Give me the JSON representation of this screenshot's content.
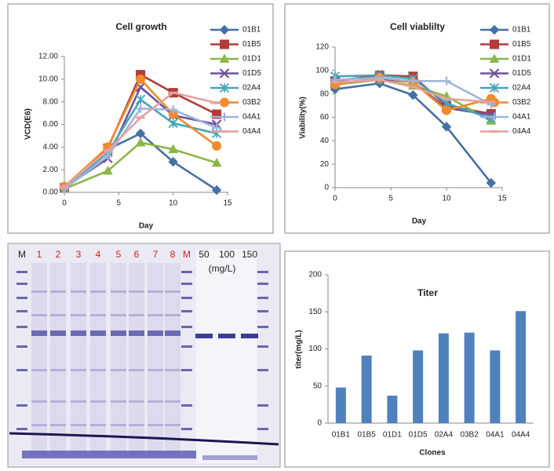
{
  "chart_data": [
    {
      "type": "line",
      "title": "Cell growth",
      "xlabel": "Day",
      "ylabel": "VCD(E6)",
      "x": [
        0,
        4,
        7,
        10,
        14
      ],
      "xlim": [
        0,
        15
      ],
      "xticks": [
        0,
        5,
        10,
        15
      ],
      "ylim": [
        0,
        12
      ],
      "yticks": [
        {
          "value": 0,
          "label": "0.00"
        },
        {
          "value": 2,
          "label": "2.00"
        },
        {
          "value": 4,
          "label": "4.00"
        },
        {
          "value": 6,
          "label": "6.00"
        },
        {
          "value": 8,
          "label": "8.00"
        },
        {
          "value": 10,
          "label": "10.00"
        },
        {
          "value": 12,
          "label": "12.00"
        }
      ],
      "series": [
        {
          "name": "01B1",
          "color": "#4470a6",
          "marker": "diamond",
          "values": [
            0.3,
            3.8,
            5.2,
            2.7,
            0.2
          ]
        },
        {
          "name": "01B5",
          "color": "#b03c38",
          "marker": "square",
          "values": [
            0.4,
            3.9,
            10.4,
            8.8,
            6.9
          ]
        },
        {
          "name": "01D1",
          "color": "#8cb64a",
          "marker": "triangle",
          "values": [
            0.3,
            1.9,
            4.4,
            3.8,
            2.6
          ]
        },
        {
          "name": "01D5",
          "color": "#70509a",
          "marker": "x",
          "values": [
            0.4,
            3.0,
            9.3,
            6.8,
            6.0
          ]
        },
        {
          "name": "02A4",
          "color": "#45a6ba",
          "marker": "star",
          "values": [
            0.4,
            3.5,
            8.2,
            6.1,
            5.2
          ]
        },
        {
          "name": "03B2",
          "color": "#f08b2e",
          "marker": "circle",
          "values": [
            0.5,
            4.0,
            10.0,
            6.9,
            4.1
          ]
        },
        {
          "name": "04A1",
          "color": "#9db5dc",
          "marker": "plus",
          "values": [
            0.3,
            3.2,
            7.4,
            7.3,
            5.7
          ]
        },
        {
          "name": "04A4",
          "color": "#e8a0a0",
          "marker": "dash",
          "values": [
            0.5,
            3.7,
            6.6,
            8.8,
            7.9
          ]
        }
      ]
    },
    {
      "type": "line",
      "title": "Cell viablilty",
      "xlabel": "Day",
      "ylabel": "Viability(%)",
      "x": [
        0,
        4,
        7,
        10,
        14
      ],
      "xlim": [
        0,
        15
      ],
      "xticks": [
        0,
        5,
        10,
        15
      ],
      "ylim": [
        0,
        120
      ],
      "yticks": [
        0,
        20,
        40,
        60,
        80,
        100,
        120
      ],
      "series": [
        {
          "name": "01B1",
          "color": "#4470a6",
          "marker": "diamond",
          "values": [
            84,
            89,
            79,
            52,
            4
          ]
        },
        {
          "name": "01B5",
          "color": "#b03c38",
          "marker": "square",
          "values": [
            91,
            96,
            95,
            70,
            63
          ]
        },
        {
          "name": "01D1",
          "color": "#8cb64a",
          "marker": "triangle",
          "values": [
            88,
            92,
            87,
            78,
            57
          ]
        },
        {
          "name": "01D5",
          "color": "#70509a",
          "marker": "x",
          "values": [
            89,
            93,
            90,
            68,
            62
          ]
        },
        {
          "name": "02A4",
          "color": "#45a6ba",
          "marker": "star",
          "values": [
            95,
            96,
            93,
            72,
            59
          ]
        },
        {
          "name": "03B2",
          "color": "#f08b2e",
          "marker": "circle",
          "values": [
            88,
            94,
            90,
            66,
            76
          ]
        },
        {
          "name": "04A1",
          "color": "#9db5dc",
          "marker": "plus",
          "values": [
            92,
            94,
            91,
            91,
            71
          ]
        },
        {
          "name": "04A4",
          "color": "#e8a0a0",
          "marker": "dash",
          "values": [
            90,
            92,
            86,
            76,
            73
          ]
        }
      ]
    },
    {
      "type": "bar",
      "title": "Titer",
      "xlabel": "Clones",
      "ylabel": "titer(mg/L)",
      "categories": [
        "01B1",
        "01B5",
        "01D1",
        "01D5",
        "02A4",
        "03B2",
        "04A1",
        "04A4"
      ],
      "values": [
        48,
        91,
        37,
        98,
        121,
        122,
        98,
        151
      ],
      "color": "#4f81bd",
      "ylim": [
        0,
        200
      ],
      "yticks": [
        0,
        50,
        100,
        150,
        200
      ]
    }
  ],
  "gel": {
    "lane_labels": [
      "M",
      "1",
      "2",
      "3",
      "4",
      "5",
      "6",
      "7",
      "8",
      "M",
      "50",
      "100",
      "150"
    ],
    "unit": "(mg/L)"
  }
}
